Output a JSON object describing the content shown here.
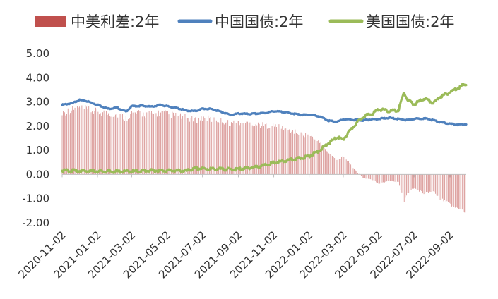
{
  "chart_data": {
    "type": "bar+line",
    "legend": {
      "placement": "top",
      "entries": [
        {
          "label": "中美利差:2年",
          "kind": "bar",
          "color": "#c0504d"
        },
        {
          "label": "中国国债:2年",
          "kind": "line",
          "color": "#4f81bd"
        },
        {
          "label": "美国国债:2年",
          "kind": "line",
          "color": "#9bbb59"
        }
      ]
    },
    "y_axis": {
      "min": -2.0,
      "max": 5.0,
      "ticks": [
        "5.00",
        "4.00",
        "3.00",
        "2.00",
        "1.00",
        "0.00",
        "-1.00",
        "-2.00"
      ],
      "tick_values": [
        5,
        4,
        3,
        2,
        1,
        0,
        -1,
        -2
      ]
    },
    "x_axis": {
      "range": [
        "2020-11-02",
        "2022-09-30"
      ],
      "ticks": [
        "2020-11-02",
        "2021-01-02",
        "2021-03-02",
        "2021-05-02",
        "2021-07-02",
        "2021-09-02",
        "2021-11-02",
        "2022-01-02",
        "2022-03-02",
        "2022-05-02",
        "2022-07-02",
        "2022-09-02"
      ],
      "label_rotation_deg": -45
    },
    "series": [
      {
        "name": "中国国债:2年",
        "color": "#4f81bd",
        "points": [
          [
            "2020-11-02",
            2.88
          ],
          [
            "2020-11-20",
            2.95
          ],
          [
            "2020-12-01",
            3.08
          ],
          [
            "2020-12-15",
            3.03
          ],
          [
            "2021-01-02",
            2.88
          ],
          [
            "2021-01-20",
            2.72
          ],
          [
            "2021-02-05",
            2.76
          ],
          [
            "2021-02-20",
            2.6
          ],
          [
            "2021-03-02",
            2.82
          ],
          [
            "2021-03-20",
            2.84
          ],
          [
            "2021-04-05",
            2.8
          ],
          [
            "2021-04-20",
            2.88
          ],
          [
            "2021-05-02",
            2.82
          ],
          [
            "2021-05-20",
            2.74
          ],
          [
            "2021-06-05",
            2.64
          ],
          [
            "2021-06-20",
            2.62
          ],
          [
            "2021-07-02",
            2.72
          ],
          [
            "2021-07-20",
            2.7
          ],
          [
            "2021-08-05",
            2.58
          ],
          [
            "2021-08-20",
            2.46
          ],
          [
            "2021-09-02",
            2.52
          ],
          [
            "2021-09-20",
            2.5
          ],
          [
            "2021-10-05",
            2.52
          ],
          [
            "2021-10-20",
            2.55
          ],
          [
            "2021-11-02",
            2.62
          ],
          [
            "2021-11-20",
            2.58
          ],
          [
            "2021-12-05",
            2.52
          ],
          [
            "2021-12-20",
            2.46
          ],
          [
            "2022-01-02",
            2.48
          ],
          [
            "2022-01-20",
            2.4
          ],
          [
            "2022-02-05",
            2.22
          ],
          [
            "2022-02-20",
            2.18
          ],
          [
            "2022-03-02",
            2.28
          ],
          [
            "2022-03-20",
            2.26
          ],
          [
            "2022-04-05",
            2.24
          ],
          [
            "2022-04-20",
            2.28
          ],
          [
            "2022-05-02",
            2.3
          ],
          [
            "2022-05-20",
            2.34
          ],
          [
            "2022-06-05",
            2.3
          ],
          [
            "2022-06-20",
            2.24
          ],
          [
            "2022-07-02",
            2.3
          ],
          [
            "2022-07-20",
            2.32
          ],
          [
            "2022-08-05",
            2.24
          ],
          [
            "2022-08-20",
            2.14
          ],
          [
            "2022-09-02",
            2.1
          ],
          [
            "2022-09-15",
            2.06
          ],
          [
            "2022-09-30",
            2.08
          ]
        ]
      },
      {
        "name": "美国国债:2年",
        "color": "#9bbb59",
        "points": [
          [
            "2020-11-02",
            0.16
          ],
          [
            "2020-12-01",
            0.15
          ],
          [
            "2021-01-02",
            0.13
          ],
          [
            "2021-02-05",
            0.12
          ],
          [
            "2021-03-02",
            0.13
          ],
          [
            "2021-04-05",
            0.16
          ],
          [
            "2021-05-02",
            0.16
          ],
          [
            "2021-06-05",
            0.15
          ],
          [
            "2021-06-20",
            0.25
          ],
          [
            "2021-07-02",
            0.24
          ],
          [
            "2021-08-05",
            0.22
          ],
          [
            "2021-09-02",
            0.22
          ],
          [
            "2021-10-05",
            0.32
          ],
          [
            "2021-10-20",
            0.4
          ],
          [
            "2021-11-02",
            0.48
          ],
          [
            "2021-11-20",
            0.55
          ],
          [
            "2021-12-05",
            0.62
          ],
          [
            "2021-12-20",
            0.68
          ],
          [
            "2022-01-02",
            0.76
          ],
          [
            "2022-01-20",
            1.0
          ],
          [
            "2022-02-05",
            1.3
          ],
          [
            "2022-02-20",
            1.55
          ],
          [
            "2022-03-02",
            1.45
          ],
          [
            "2022-03-20",
            2.0
          ],
          [
            "2022-04-05",
            2.4
          ],
          [
            "2022-04-20",
            2.5
          ],
          [
            "2022-05-02",
            2.7
          ],
          [
            "2022-05-20",
            2.62
          ],
          [
            "2022-06-05",
            2.65
          ],
          [
            "2022-06-10",
            3.05
          ],
          [
            "2022-06-15",
            3.4
          ],
          [
            "2022-06-20",
            3.1
          ],
          [
            "2022-07-02",
            2.9
          ],
          [
            "2022-07-20",
            3.15
          ],
          [
            "2022-08-05",
            2.95
          ],
          [
            "2022-08-15",
            3.2
          ],
          [
            "2022-09-02",
            3.4
          ],
          [
            "2022-09-15",
            3.58
          ],
          [
            "2022-09-30",
            3.75
          ]
        ]
      },
      {
        "name": "中美利差:2年",
        "color": "#c0504d",
        "render": "bars",
        "points": [
          [
            "2020-11-02",
            2.72
          ],
          [
            "2020-12-01",
            2.93
          ],
          [
            "2021-01-02",
            2.75
          ],
          [
            "2021-02-05",
            2.64
          ],
          [
            "2021-02-20",
            2.48
          ],
          [
            "2021-03-02",
            2.69
          ],
          [
            "2021-04-05",
            2.64
          ],
          [
            "2021-04-20",
            2.72
          ],
          [
            "2021-05-02",
            2.66
          ],
          [
            "2021-06-05",
            2.49
          ],
          [
            "2021-06-20",
            2.37
          ],
          [
            "2021-07-02",
            2.48
          ],
          [
            "2021-08-05",
            2.36
          ],
          [
            "2021-08-20",
            2.24
          ],
          [
            "2021-09-02",
            2.3
          ],
          [
            "2021-10-05",
            2.2
          ],
          [
            "2021-10-20",
            2.15
          ],
          [
            "2021-11-02",
            2.14
          ],
          [
            "2021-11-20",
            2.03
          ],
          [
            "2021-12-05",
            1.9
          ],
          [
            "2021-12-20",
            1.78
          ],
          [
            "2022-01-02",
            1.72
          ],
          [
            "2022-01-20",
            1.4
          ],
          [
            "2022-02-05",
            0.92
          ],
          [
            "2022-02-20",
            0.63
          ],
          [
            "2022-03-02",
            0.83
          ],
          [
            "2022-03-20",
            0.26
          ],
          [
            "2022-04-05",
            -0.16
          ],
          [
            "2022-04-20",
            -0.22
          ],
          [
            "2022-05-02",
            -0.4
          ],
          [
            "2022-05-20",
            -0.28
          ],
          [
            "2022-06-05",
            -0.35
          ],
          [
            "2022-06-15",
            -1.14
          ],
          [
            "2022-06-20",
            -0.86
          ],
          [
            "2022-07-02",
            -0.6
          ],
          [
            "2022-07-20",
            -0.83
          ],
          [
            "2022-08-05",
            -0.71
          ],
          [
            "2022-08-15",
            -1.06
          ],
          [
            "2022-09-02",
            -1.3
          ],
          [
            "2022-09-15",
            -1.52
          ],
          [
            "2022-09-30",
            -1.67
          ]
        ]
      }
    ],
    "grid": false
  }
}
